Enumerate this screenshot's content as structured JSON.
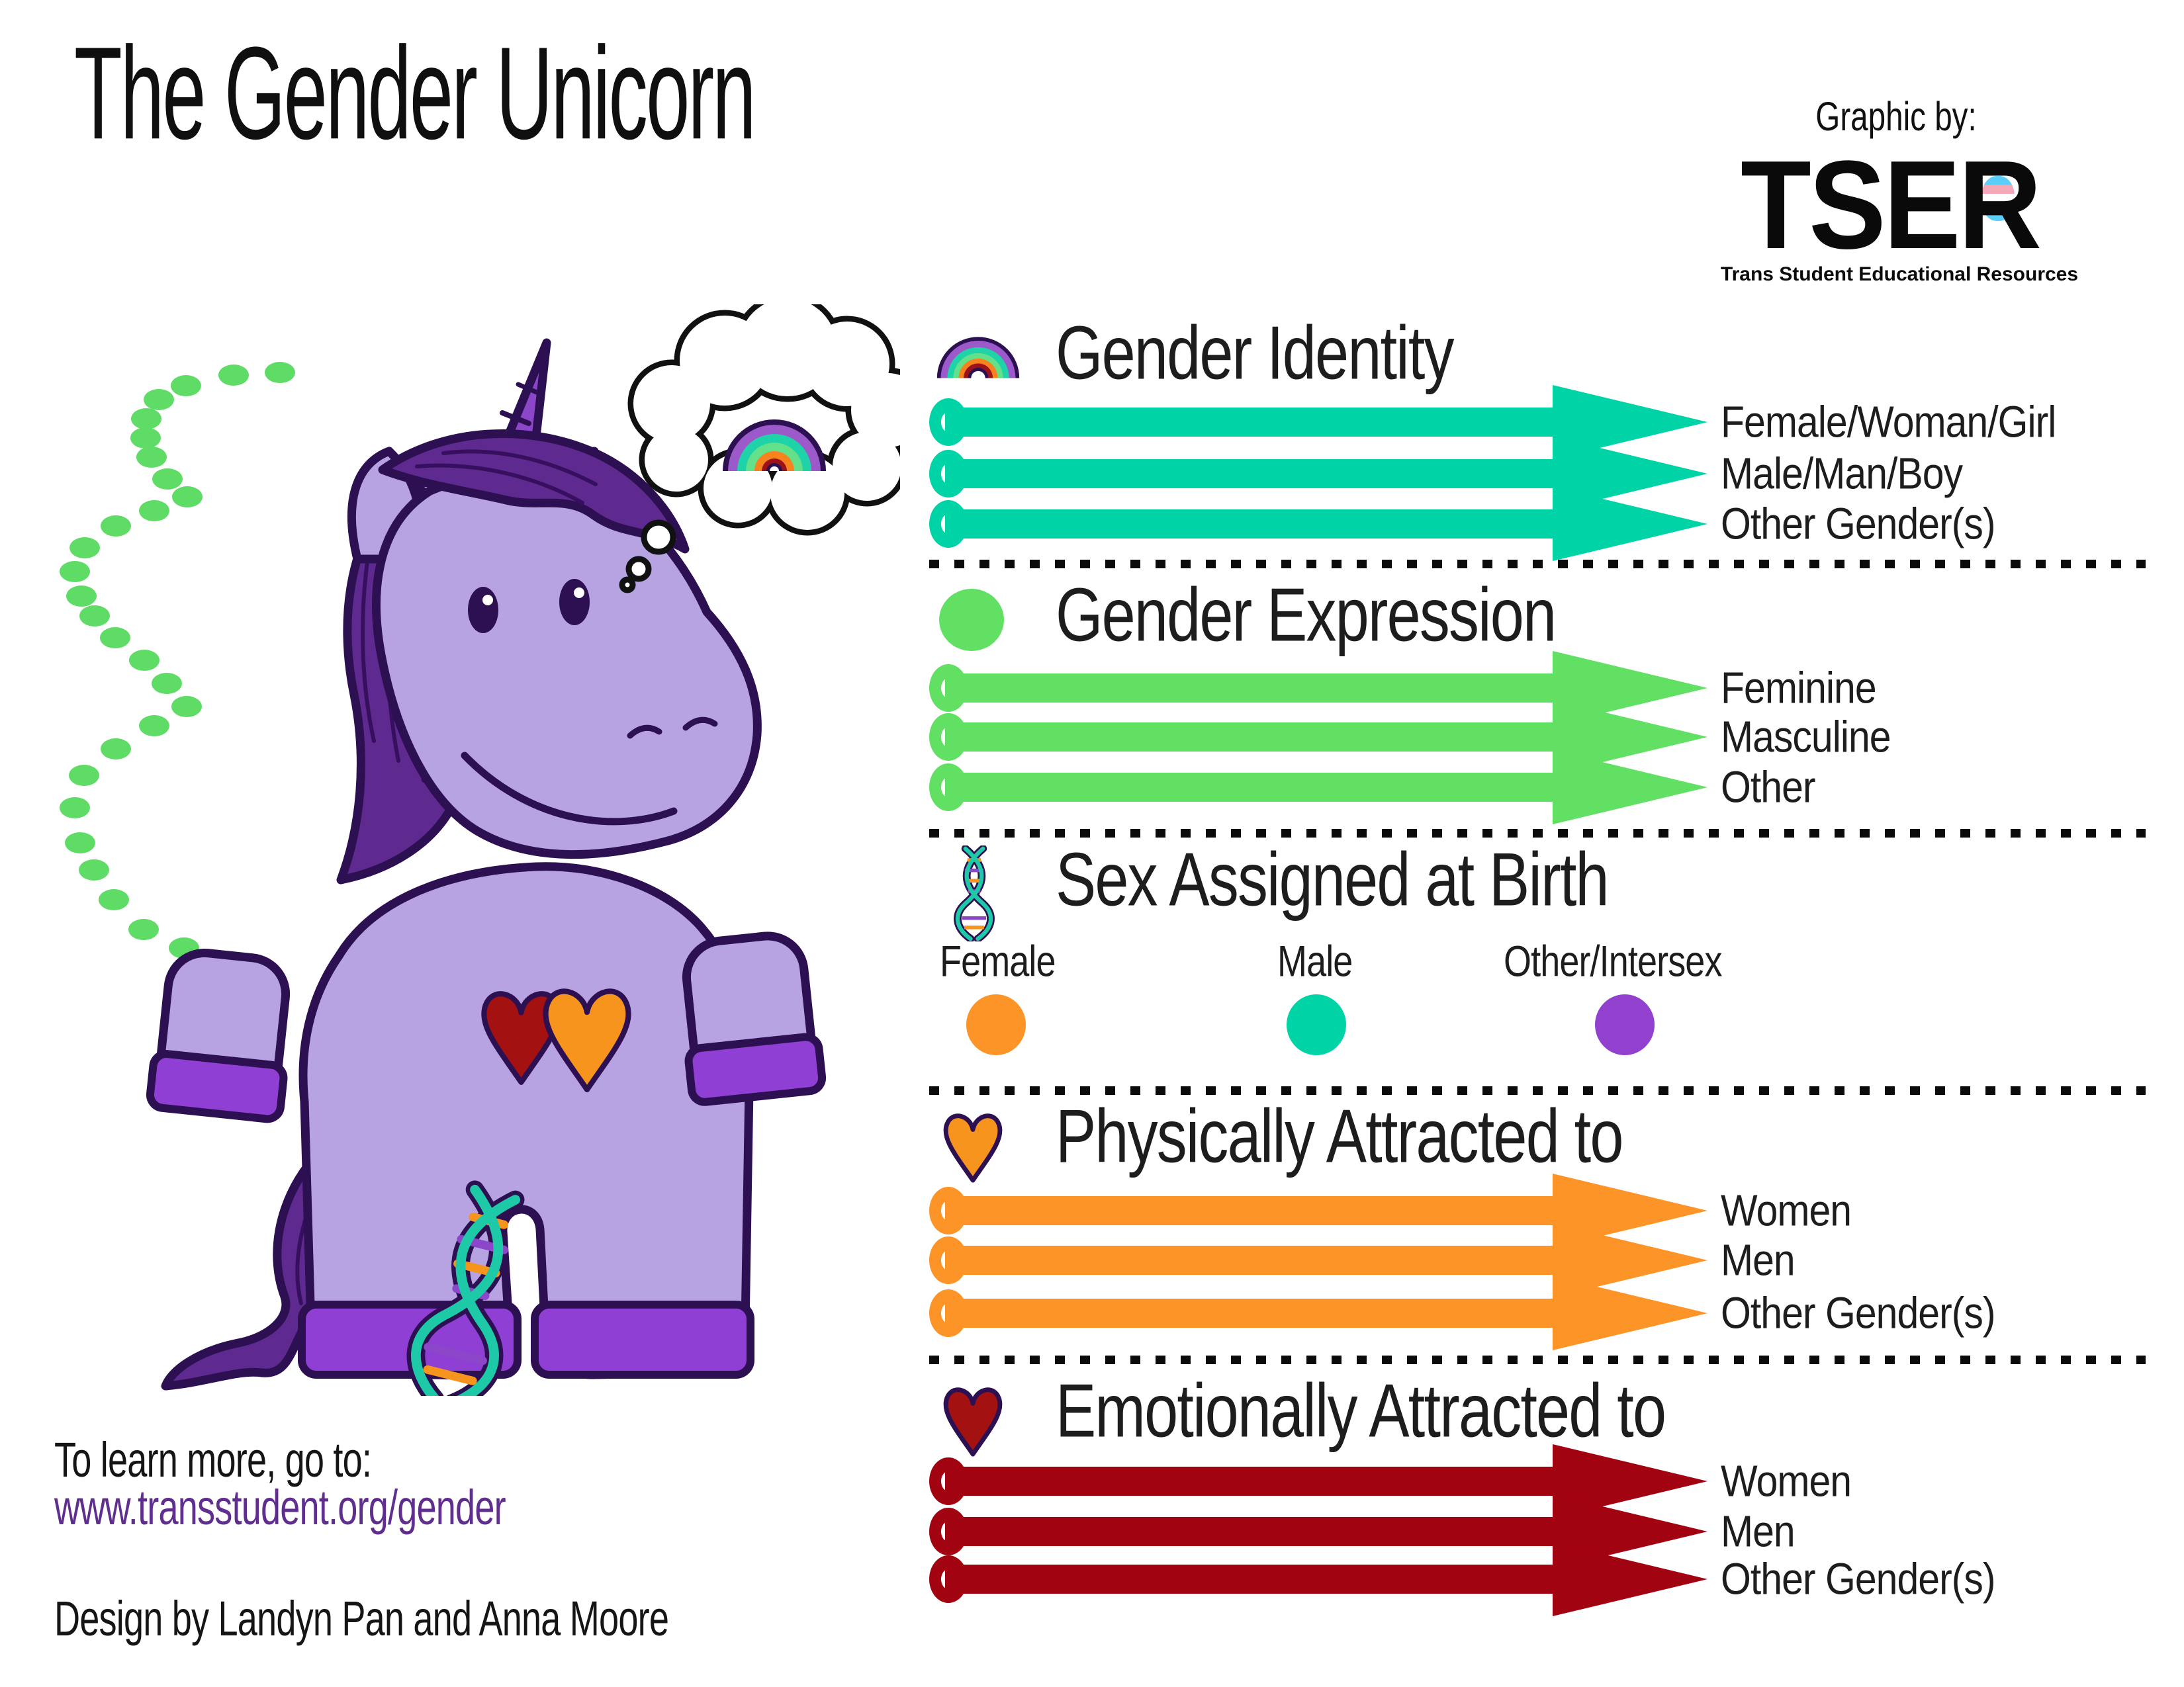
{
  "header": {
    "title": "The Gender Unicorn",
    "logo": {
      "caption": "Graphic by:",
      "acronym": "TSER",
      "org": "Trans Student Educational Resources"
    }
  },
  "sections": [
    {
      "title": "Gender Identity",
      "icon": "rainbow-icon",
      "color": "#00d3a6",
      "arrows": [
        "Female/Woman/Girl",
        "Male/Man/Boy",
        "Other Gender(s)"
      ]
    },
    {
      "title": "Gender Expression",
      "icon": "green-dot-icon",
      "color": "#62e063",
      "arrows": [
        "Feminine",
        "Masculine",
        "Other"
      ]
    },
    {
      "title": "Sex Assigned at Birth",
      "icon": "dna-icon",
      "options": [
        {
          "label": "Female",
          "color": "#fc9428"
        },
        {
          "label": "Male",
          "color": "#00d3a6"
        },
        {
          "label": "Other/Intersex",
          "color": "#9141ce"
        }
      ]
    },
    {
      "title": "Physically Attracted to",
      "icon": "orange-heart-icon",
      "color": "#fc9428",
      "arrows": [
        "Women",
        "Men",
        "Other Gender(s)"
      ]
    },
    {
      "title": "Emotionally Attracted to",
      "icon": "red-heart-icon",
      "color": "#a20310",
      "arrows": [
        "Women",
        "Men",
        "Other Gender(s)"
      ]
    }
  ],
  "footer": {
    "learn_more": "To learn more, go to:",
    "url": "www.transstudent.org/gender",
    "credit": "Design by Landyn Pan and Anna Moore"
  },
  "colors": {
    "teal": "#00d3a6",
    "green": "#62e063",
    "orange": "#fc9428",
    "dark_red": "#a20310",
    "purple": "#9141ce",
    "unicorn_body": "#b7a3e2",
    "unicorn_outline": "#2d1052",
    "url_purple": "#5f2e8e",
    "dots_green": "#5fdc66"
  }
}
